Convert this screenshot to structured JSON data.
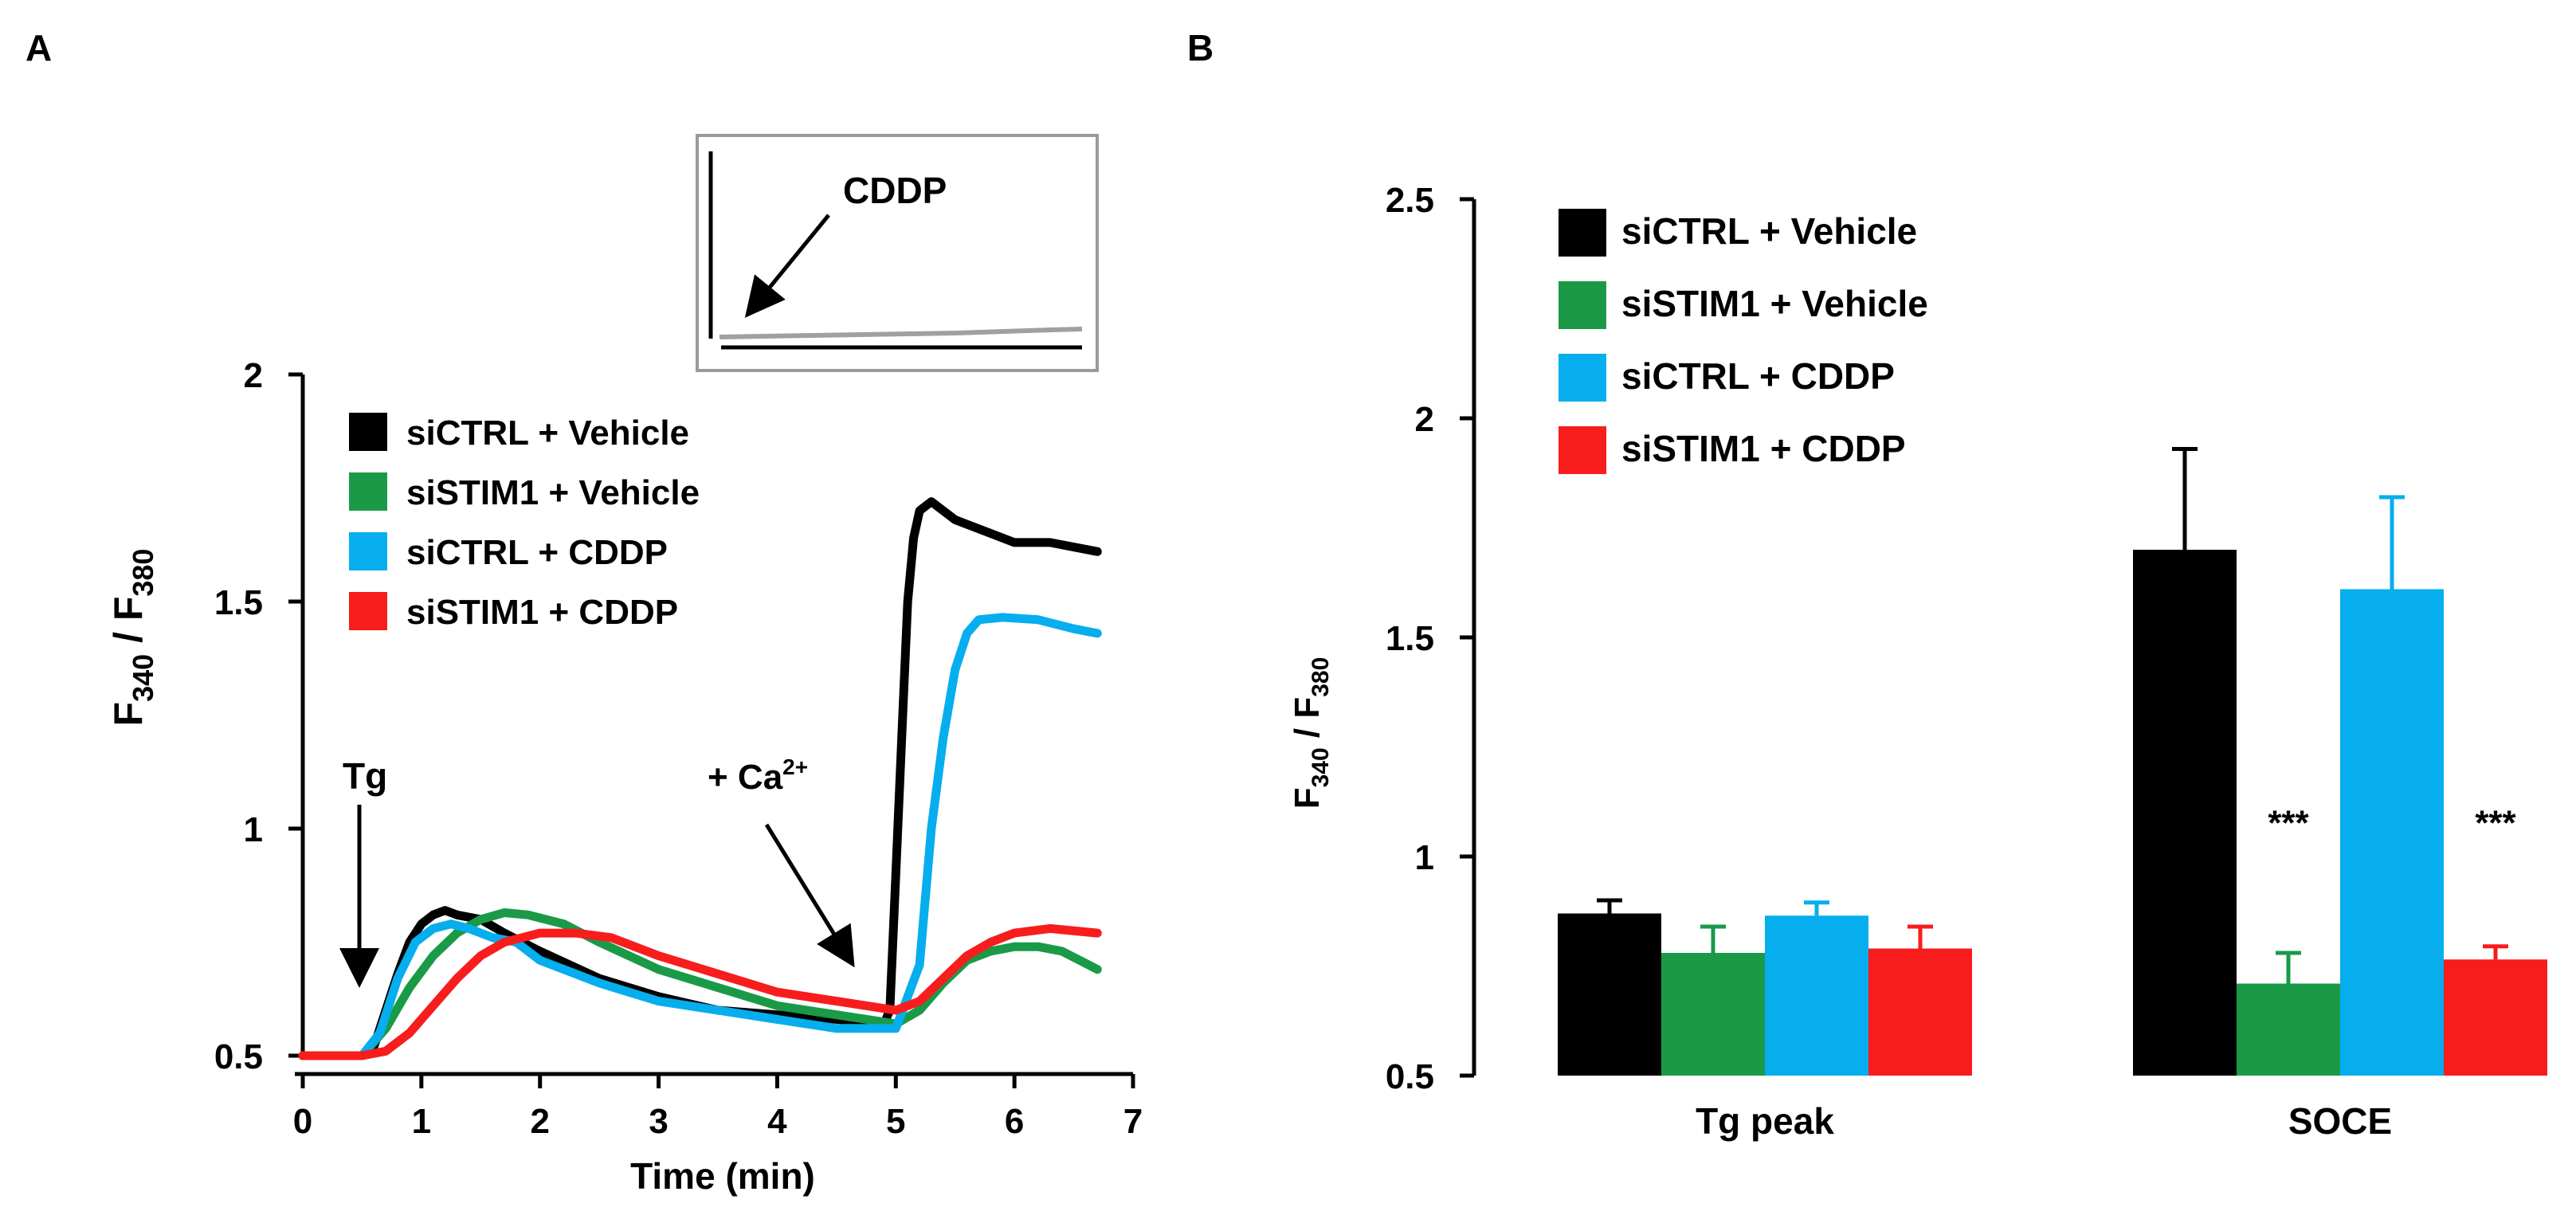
{
  "panels": {
    "a_label": "A",
    "b_label": "B"
  },
  "colors": {
    "black": "#000000",
    "green": "#1a9a47",
    "blue": "#06aeee",
    "red": "#f71d1d",
    "inset_gray": "#a0a0a0"
  },
  "chart_data": [
    {
      "type": "line",
      "panel": "A",
      "title": "",
      "xlabel": "Time (min)",
      "ylabel_main": "F",
      "ylabel_sub1": "340",
      "ylabel_sep": " / F",
      "ylabel_sub2": "380",
      "xlim": [
        0,
        7
      ],
      "ylim": [
        0.5,
        2
      ],
      "x_ticks": [
        "0",
        "1",
        "2",
        "3",
        "4",
        "5",
        "6",
        "7"
      ],
      "x_tick_values": [
        0,
        1,
        2,
        3,
        4,
        5,
        6,
        7
      ],
      "y_ticks": [
        "0.5",
        "1",
        "1.5",
        "2"
      ],
      "y_tick_values": [
        0.5,
        1,
        1.5,
        2
      ],
      "series": [
        {
          "name": "siCTRL + Vehicle",
          "color": "#000000",
          "x": [
            0,
            0.5,
            0.6,
            0.7,
            0.8,
            0.9,
            1.0,
            1.1,
            1.2,
            1.3,
            1.5,
            1.7,
            2.0,
            2.5,
            3.0,
            3.5,
            4.0,
            4.5,
            4.9,
            4.95,
            5.0,
            5.05,
            5.1,
            5.15,
            5.2,
            5.3,
            5.5,
            5.8,
            6.0,
            6.3,
            6.7
          ],
          "y": [
            0.5,
            0.5,
            0.52,
            0.6,
            0.68,
            0.75,
            0.79,
            0.81,
            0.82,
            0.81,
            0.8,
            0.77,
            0.73,
            0.67,
            0.63,
            0.6,
            0.59,
            0.58,
            0.57,
            0.6,
            0.9,
            1.2,
            1.5,
            1.64,
            1.7,
            1.72,
            1.68,
            1.65,
            1.63,
            1.63,
            1.61
          ]
        },
        {
          "name": "siSTIM1 + Vehicle",
          "color": "#1a9a47",
          "x": [
            0,
            0.5,
            0.7,
            0.9,
            1.1,
            1.3,
            1.5,
            1.7,
            1.9,
            2.2,
            2.5,
            3.0,
            3.5,
            4.0,
            4.5,
            5.0,
            5.2,
            5.4,
            5.6,
            5.8,
            6.0,
            6.2,
            6.4,
            6.7
          ],
          "y": [
            0.5,
            0.5,
            0.56,
            0.65,
            0.72,
            0.77,
            0.8,
            0.815,
            0.81,
            0.79,
            0.75,
            0.69,
            0.65,
            0.61,
            0.59,
            0.57,
            0.6,
            0.66,
            0.71,
            0.73,
            0.74,
            0.74,
            0.73,
            0.69
          ]
        },
        {
          "name": "siCTRL + CDDP",
          "color": "#06aeee",
          "x": [
            0,
            0.5,
            0.65,
            0.8,
            0.95,
            1.1,
            1.25,
            1.4,
            1.6,
            1.8,
            2.0,
            2.5,
            3.0,
            3.5,
            4.0,
            4.5,
            5.0,
            5.2,
            5.3,
            5.4,
            5.5,
            5.6,
            5.7,
            5.9,
            6.2,
            6.5,
            6.7
          ],
          "y": [
            0.5,
            0.5,
            0.55,
            0.67,
            0.75,
            0.78,
            0.79,
            0.78,
            0.76,
            0.75,
            0.71,
            0.66,
            0.62,
            0.6,
            0.58,
            0.56,
            0.56,
            0.7,
            1.0,
            1.2,
            1.35,
            1.43,
            1.46,
            1.465,
            1.46,
            1.44,
            1.43
          ]
        },
        {
          "name": "siSTIM1 + CDDP",
          "color": "#f71d1d",
          "x": [
            0,
            0.5,
            0.7,
            0.9,
            1.1,
            1.3,
            1.5,
            1.7,
            2.0,
            2.3,
            2.6,
            3.0,
            3.5,
            4.0,
            4.5,
            5.0,
            5.2,
            5.4,
            5.6,
            5.8,
            6.0,
            6.3,
            6.7
          ],
          "y": [
            0.5,
            0.5,
            0.51,
            0.55,
            0.61,
            0.67,
            0.72,
            0.75,
            0.77,
            0.77,
            0.76,
            0.72,
            0.68,
            0.64,
            0.62,
            0.6,
            0.62,
            0.67,
            0.72,
            0.75,
            0.77,
            0.78,
            0.77
          ]
        }
      ],
      "legend": [
        "siCTRL + Vehicle",
        "siSTIM1 + Vehicle",
        "siCTRL + CDDP",
        "siSTIM1 + CDDP"
      ],
      "legend_position": "top-left",
      "annotations": [
        {
          "text": "Tg",
          "points_to_x": 0.5
        },
        {
          "text": "+ Ca",
          "sup": "2+",
          "points_to_x": 4.8
        }
      ],
      "inset": {
        "label": "CDDP",
        "trace_color": "#a0a0a0"
      }
    },
    {
      "type": "bar",
      "panel": "B",
      "title": "",
      "xlabel": "",
      "ylabel_main": "F",
      "ylabel_sub1": "340",
      "ylabel_sep": " / F",
      "ylabel_sub2": "380",
      "ylim": [
        0.5,
        2.5
      ],
      "y_ticks": [
        "0.5",
        "1",
        "1.5",
        "2",
        "2.5"
      ],
      "y_tick_values": [
        0.5,
        1,
        1.5,
        2,
        2.5
      ],
      "categories": [
        "Tg peak",
        "SOCE"
      ],
      "series": [
        {
          "name": "siCTRL + Vehicle",
          "color": "#000000",
          "values": [
            0.87,
            1.7
          ],
          "errors": [
            0.03,
            0.23
          ],
          "sig": [
            "",
            ""
          ]
        },
        {
          "name": "siSTIM1 + Vehicle",
          "color": "#1a9a47",
          "values": [
            0.78,
            0.71
          ],
          "errors": [
            0.06,
            0.07
          ],
          "sig": [
            "",
            "***"
          ]
        },
        {
          "name": "siCTRL + CDDP",
          "color": "#06aeee",
          "values": [
            0.865,
            1.61
          ],
          "errors": [
            0.03,
            0.21
          ],
          "sig": [
            "",
            ""
          ]
        },
        {
          "name": "siSTIM1 + CDDP",
          "color": "#f71d1d",
          "values": [
            0.79,
            0.765
          ],
          "errors": [
            0.05,
            0.03
          ],
          "sig": [
            "",
            "***"
          ]
        }
      ],
      "legend": [
        "siCTRL + Vehicle",
        "siSTIM1 + Vehicle",
        "siCTRL + CDDP",
        "siSTIM1 + CDDP"
      ],
      "legend_position": "top-left"
    }
  ]
}
